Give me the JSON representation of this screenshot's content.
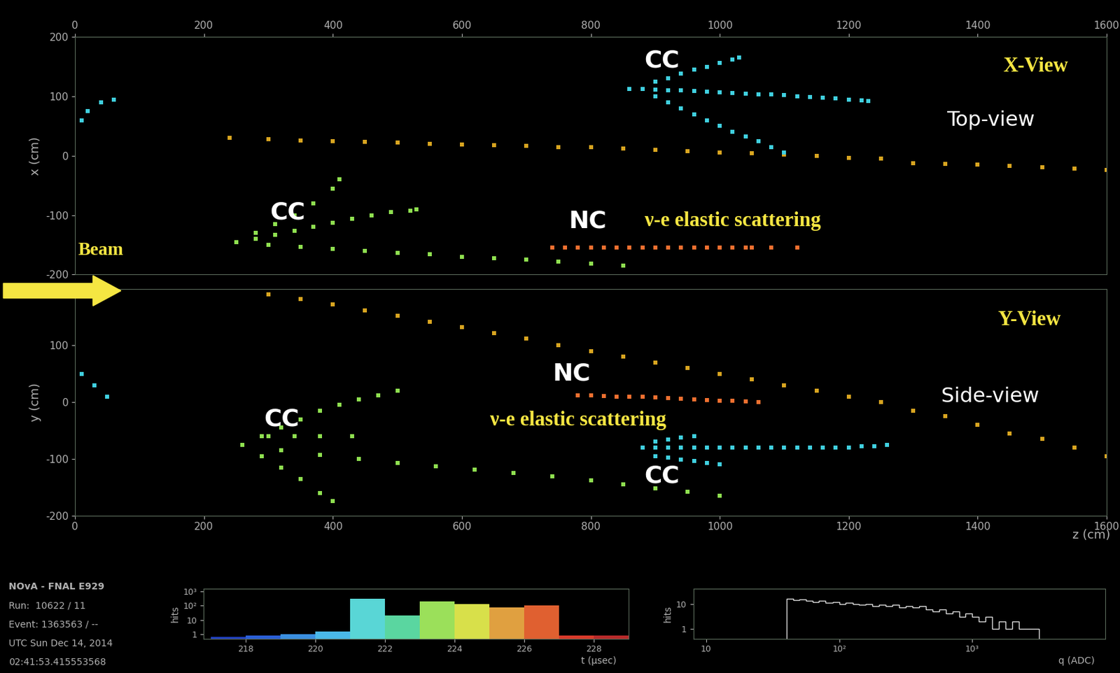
{
  "chart_data": [
    {
      "type": "scatter",
      "ylabel": "x (cm)",
      "xlim": [
        0,
        1600
      ],
      "xticks": [
        0,
        200,
        400,
        600,
        800,
        1000,
        1200,
        1400,
        1600
      ],
      "ylim": [
        -200,
        200
      ],
      "yticks": [
        -200,
        -100,
        0,
        100,
        200
      ],
      "annotations": [
        {
          "text": "CC",
          "color": "#ffffff"
        },
        {
          "text": "CC",
          "color": "#ffffff"
        },
        {
          "text": "NC",
          "color": "#ffffff"
        },
        {
          "text": "ν-e elastic scattering",
          "color": "#f5e642"
        },
        {
          "text": "X-View",
          "color": "#f5e642"
        },
        {
          "text": "Top-view",
          "color": "#ffffff"
        },
        {
          "text": "Beam",
          "color": "#f5e642"
        }
      ],
      "series": [
        {
          "color": "#d9a520",
          "marker": "s",
          "x": [
            240,
            300,
            350,
            400,
            450,
            500,
            550,
            600,
            650,
            700,
            750,
            800,
            850,
            900,
            950,
            1000,
            1050,
            1100,
            1150,
            1200,
            1250,
            1300,
            1350,
            1400,
            1450,
            1500,
            1550,
            1600
          ],
          "values": [
            30,
            28,
            26,
            25,
            24,
            22,
            20,
            19,
            18,
            17,
            15,
            14,
            12,
            10,
            8,
            6,
            4,
            2,
            0,
            -3,
            -5,
            -12,
            -14,
            -15,
            -17,
            -19,
            -21,
            -24
          ]
        },
        {
          "color": "#f07030",
          "marker": "s",
          "x": [
            740,
            760,
            780,
            800,
            820,
            840,
            860,
            880,
            900,
            920,
            940,
            960,
            980,
            1000,
            1020,
            1040,
            1050,
            1080,
            1120
          ],
          "values": [
            -155,
            -155,
            -155,
            -155,
            -155,
            -155,
            -155,
            -155,
            -155,
            -155,
            -155,
            -155,
            -155,
            -155,
            -155,
            -155,
            -155,
            -155,
            -155
          ]
        },
        {
          "color": "#40d0e0",
          "marker": "s",
          "x": [
            860,
            880,
            900,
            920,
            940,
            960,
            980,
            1000,
            1020,
            1040,
            1060,
            1080,
            1100,
            1120,
            1140,
            1160,
            1180,
            1200,
            1220,
            1230
          ],
          "values": [
            112,
            112,
            111,
            110,
            110,
            109,
            108,
            107,
            106,
            105,
            104,
            103,
            102,
            100,
            99,
            98,
            97,
            95,
            93,
            92
          ]
        },
        {
          "color": "#40d0e0",
          "marker": "s",
          "x": [
            900,
            920,
            940,
            960,
            980,
            1000,
            1020,
            1030
          ],
          "values": [
            125,
            130,
            138,
            145,
            150,
            156,
            162,
            165
          ]
        },
        {
          "color": "#40d0e0",
          "marker": "s",
          "x": [
            900,
            920,
            940,
            960,
            980,
            1000,
            1020,
            1040,
            1060,
            1080,
            1100
          ],
          "values": [
            100,
            90,
            80,
            70,
            60,
            50,
            40,
            32,
            25,
            15,
            5
          ]
        },
        {
          "color": "#40d0e0",
          "marker": "s",
          "x": [
            10,
            20,
            40,
            60
          ],
          "values": [
            60,
            75,
            90,
            95
          ]
        },
        {
          "color": "#8fe050",
          "marker": "s",
          "x": [
            250,
            280,
            310,
            340,
            370,
            400,
            430,
            460,
            490,
            520,
            530
          ],
          "values": [
            -145,
            -140,
            -133,
            -126,
            -120,
            -113,
            -106,
            -100,
            -95,
            -92,
            -90
          ]
        },
        {
          "color": "#8fe050",
          "marker": "s",
          "x": [
            250,
            300,
            350,
            400,
            450,
            500,
            550,
            600,
            650,
            700,
            750,
            800,
            850
          ],
          "values": [
            -145,
            -150,
            -153,
            -157,
            -160,
            -163,
            -166,
            -170,
            -172,
            -175,
            -178,
            -182,
            -185
          ]
        },
        {
          "color": "#8fe050",
          "marker": "s",
          "x": [
            250,
            280,
            310,
            340,
            370,
            400,
            410
          ],
          "values": [
            -145,
            -130,
            -115,
            -100,
            -80,
            -55,
            -40
          ]
        }
      ]
    },
    {
      "type": "scatter",
      "ylabel": "y (cm)",
      "xlabel": "z (cm)",
      "xlim": [
        0,
        1600
      ],
      "xticks": [
        0,
        200,
        400,
        600,
        800,
        1000,
        1200,
        1400,
        1600
      ],
      "ylim": [
        -200,
        200
      ],
      "yticks": [
        -200,
        -100,
        0,
        100,
        200
      ],
      "annotations": [
        {
          "text": "Y-View",
          "color": "#f5e642"
        },
        {
          "text": "Side-view",
          "color": "#ffffff"
        },
        {
          "text": "NC",
          "color": "#ffffff"
        },
        {
          "text": "CC",
          "color": "#ffffff"
        },
        {
          "text": "ν-e elastic scattering",
          "color": "#f5e642"
        },
        {
          "text": "CC",
          "color": "#ffffff"
        }
      ],
      "series": [
        {
          "color": "#d9a520",
          "marker": "s",
          "x": [
            300,
            350,
            400,
            450,
            500,
            550,
            600,
            650,
            700,
            750,
            800,
            850,
            900,
            950,
            1000,
            1050,
            1100,
            1150,
            1200,
            1250,
            1300,
            1350,
            1400,
            1450,
            1500,
            1550,
            1600
          ],
          "values": [
            190,
            182,
            172,
            162,
            152,
            142,
            132,
            122,
            112,
            100,
            90,
            80,
            70,
            60,
            50,
            40,
            30,
            20,
            10,
            0,
            -15,
            -25,
            -40,
            -55,
            -65,
            -80,
            -95
          ]
        },
        {
          "color": "#f07030",
          "marker": "s",
          "x": [
            780,
            800,
            820,
            840,
            860,
            880,
            900,
            920,
            940,
            960,
            980,
            1000,
            1020,
            1040,
            1060
          ],
          "values": [
            12,
            12,
            11,
            10,
            10,
            9,
            8,
            7,
            6,
            5,
            4,
            3,
            2,
            1,
            0
          ]
        },
        {
          "color": "#40d0e0",
          "marker": "s",
          "x": [
            880,
            900,
            920,
            940,
            960,
            980,
            1000,
            1020,
            1040,
            1060,
            1080,
            1100,
            1120,
            1140,
            1160,
            1180,
            1200,
            1220,
            1240,
            1260
          ],
          "values": [
            -80,
            -80,
            -80,
            -80,
            -80,
            -80,
            -80,
            -80,
            -80,
            -80,
            -80,
            -80,
            -80,
            -80,
            -80,
            -80,
            -80,
            -78,
            -78,
            -76
          ]
        },
        {
          "color": "#40d0e0",
          "marker": "s",
          "x": [
            900,
            920,
            940,
            960,
            980,
            1000
          ],
          "values": [
            -95,
            -98,
            -101,
            -104,
            -107,
            -110
          ]
        },
        {
          "color": "#40d0e0",
          "marker": "s",
          "x": [
            900,
            920,
            940,
            960
          ],
          "values": [
            -70,
            -66,
            -62,
            -60
          ]
        },
        {
          "color": "#40d0e0",
          "marker": "s",
          "x": [
            10,
            30,
            50
          ],
          "values": [
            50,
            30,
            10
          ]
        },
        {
          "color": "#8fe050",
          "marker": "s",
          "x": [
            260,
            290,
            320,
            350,
            380,
            410,
            440,
            470,
            500
          ],
          "values": [
            -75,
            -60,
            -45,
            -30,
            -15,
            -5,
            5,
            12,
            20
          ]
        },
        {
          "color": "#8fe050",
          "marker": "s",
          "x": [
            260,
            290,
            320,
            350,
            380,
            400
          ],
          "values": [
            -75,
            -95,
            -115,
            -135,
            -160,
            -175
          ]
        },
        {
          "color": "#8fe050",
          "marker": "s",
          "x": [
            260,
            320,
            380,
            440,
            500,
            560,
            620,
            680,
            740,
            800,
            850,
            900,
            950,
            1000
          ],
          "values": [
            -75,
            -85,
            -93,
            -100,
            -107,
            -113,
            -119,
            -125,
            -131,
            -138,
            -145,
            -152,
            -158,
            -165
          ]
        },
        {
          "color": "#8fe050",
          "marker": "s",
          "x": [
            300,
            340,
            380,
            430
          ],
          "values": [
            -60,
            -60,
            -60,
            -60
          ]
        }
      ]
    },
    {
      "type": "bar",
      "xlabel": "t (µsec)",
      "ylabel": "hits",
      "log": "y",
      "bins": [
        217,
        218,
        219,
        220,
        221,
        222,
        223,
        224,
        225,
        226,
        227,
        228,
        229
      ],
      "values": [
        0.7,
        0.8,
        1,
        1.5,
        300,
        20,
        200,
        130,
        80,
        110,
        0.8,
        0.8
      ],
      "colors": [
        "#1f3fbf",
        "#2a5fd6",
        "#3a8fe0",
        "#4ab8e8",
        "#59d6d6",
        "#5ad6a0",
        "#9be05a",
        "#d8e04a",
        "#e0a040",
        "#e06030",
        "#d83a2a",
        "#b82a2a"
      ],
      "xlim": [
        216.8,
        229
      ],
      "xticks": [
        218,
        220,
        222,
        224,
        226,
        228
      ],
      "ylim": [
        0.5,
        1500
      ],
      "yticks": [
        1,
        10,
        {
          "value": 100,
          "label": "10²"
        },
        {
          "value": 1000,
          "label": "10³"
        }
      ]
    },
    {
      "type": "histogram",
      "xlabel": "q (ADC)",
      "ylabel": "hits",
      "log": true,
      "color": "#dddddd",
      "bins": [
        40,
        45,
        50,
        56,
        63,
        70,
        79,
        89,
        100,
        112,
        126,
        141,
        158,
        178,
        200,
        224,
        251,
        282,
        316,
        355,
        398,
        447,
        501,
        562,
        631,
        708,
        794,
        891,
        1000,
        1122,
        1259,
        1413,
        1585,
        1778,
        1995,
        2239,
        2512,
        2818,
        3162
      ],
      "values": [
        16,
        14,
        15,
        13,
        12,
        13,
        11,
        12,
        10,
        11,
        10,
        9,
        10,
        8,
        9,
        8,
        9,
        7,
        8,
        7,
        8,
        6,
        5,
        6,
        4,
        5,
        3,
        4,
        3,
        2,
        3,
        1,
        2,
        1,
        2,
        1,
        1,
        1
      ],
      "xlim": [
        8,
        10000
      ],
      "xticks": [
        10,
        {
          "value": 100,
          "label": "10²"
        },
        {
          "value": 1000,
          "label": "10³"
        }
      ],
      "ylim": [
        0.4,
        40
      ],
      "yticks": [
        1,
        10
      ]
    }
  ],
  "info": [
    "NOvA - FNAL E929",
    "Run:  10622 / 11",
    "Event: 1363563 / --",
    "UTC Sun Dec 14, 2014",
    "02:41:53.415553568"
  ]
}
